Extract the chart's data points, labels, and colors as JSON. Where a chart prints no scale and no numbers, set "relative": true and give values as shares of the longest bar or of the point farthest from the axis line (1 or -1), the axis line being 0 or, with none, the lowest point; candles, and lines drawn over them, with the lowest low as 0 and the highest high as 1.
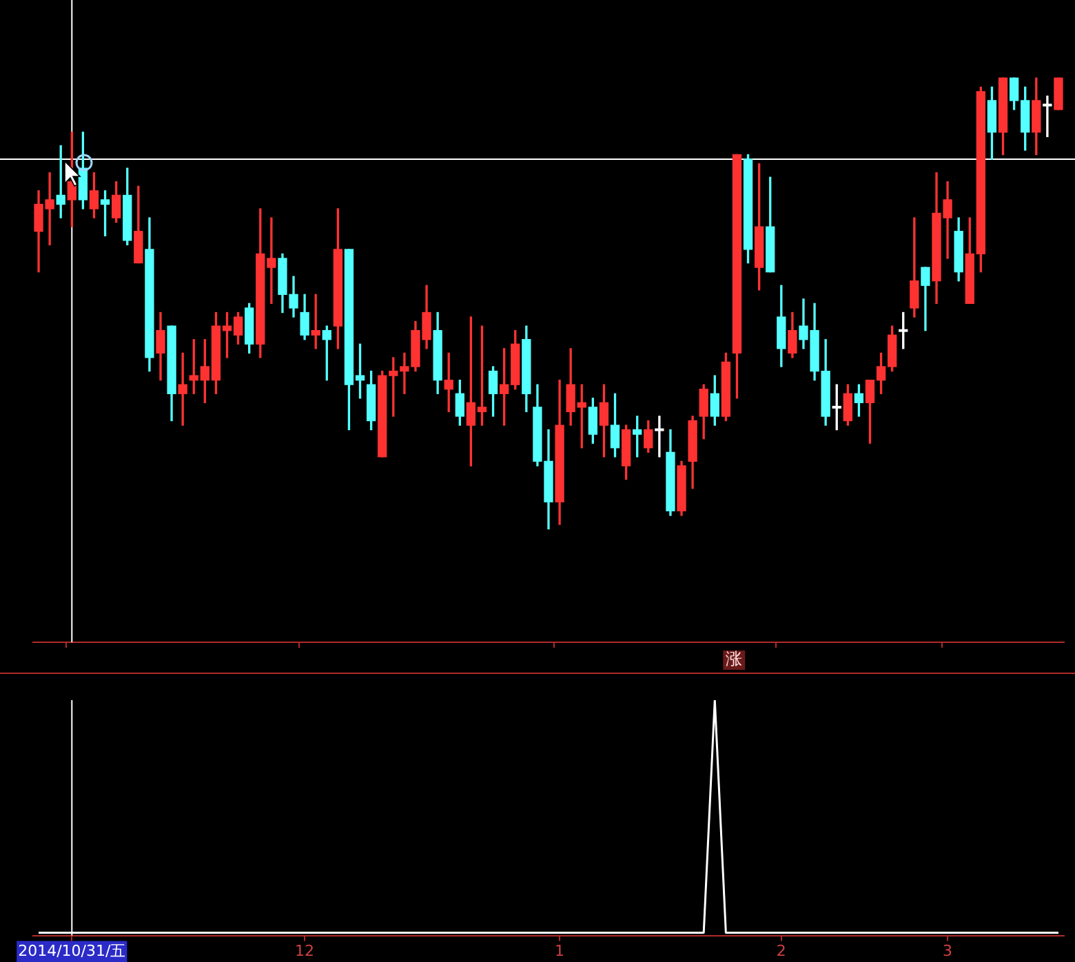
{
  "chart_data": [
    {
      "type": "candlestick",
      "relative": true,
      "tick_labels": false,
      "categories": [
        null,
        null,
        null,
        "2014/10/31/五",
        null,
        null,
        null,
        null,
        null,
        null,
        null,
        null,
        null,
        null,
        null,
        null,
        null,
        null,
        null,
        null,
        null,
        null,
        null,
        null,
        "12",
        null,
        null,
        null,
        null,
        null,
        null,
        null,
        null,
        null,
        null,
        null,
        null,
        null,
        null,
        null,
        null,
        null,
        null,
        null,
        null,
        null,
        null,
        "1",
        null,
        null,
        null,
        null,
        null,
        null,
        null,
        null,
        null,
        null,
        null,
        null,
        null,
        null,
        null,
        null,
        null,
        null,
        null,
        "2",
        null,
        null,
        null,
        null,
        null,
        null,
        null,
        null,
        null,
        null,
        null,
        null,
        null,
        null,
        "3",
        null,
        null,
        null,
        null,
        null,
        null,
        null,
        null,
        null,
        null
      ],
      "ohlc": [
        [
          0.66,
          0.75,
          0.57,
          0.72
        ],
        [
          0.71,
          0.79,
          0.63,
          0.73
        ],
        [
          0.74,
          0.85,
          0.69,
          0.72
        ],
        [
          0.73,
          0.88,
          0.67,
          0.77
        ],
        [
          0.8,
          0.88,
          0.71,
          0.73
        ],
        [
          0.71,
          0.79,
          0.69,
          0.75
        ],
        [
          0.73,
          0.75,
          0.65,
          0.72
        ],
        [
          0.69,
          0.77,
          0.68,
          0.74
        ],
        [
          0.74,
          0.8,
          0.63,
          0.64
        ],
        [
          0.59,
          0.76,
          0.59,
          0.66
        ],
        [
          0.62,
          0.69,
          0.35,
          0.38
        ],
        [
          0.39,
          0.48,
          0.33,
          0.44
        ],
        [
          0.45,
          0.45,
          0.24,
          0.3
        ],
        [
          0.3,
          0.39,
          0.23,
          0.32
        ],
        [
          0.33,
          0.42,
          0.3,
          0.34
        ],
        [
          0.33,
          0.42,
          0.28,
          0.36
        ],
        [
          0.33,
          0.48,
          0.3,
          0.45
        ],
        [
          0.44,
          0.48,
          0.38,
          0.45
        ],
        [
          0.43,
          0.48,
          0.41,
          0.47
        ],
        [
          0.49,
          0.5,
          0.39,
          0.41
        ],
        [
          0.41,
          0.71,
          0.38,
          0.61
        ],
        [
          0.58,
          0.69,
          0.5,
          0.6
        ],
        [
          0.6,
          0.61,
          0.48,
          0.52
        ],
        [
          0.52,
          0.56,
          0.47,
          0.49
        ],
        [
          0.48,
          0.52,
          0.42,
          0.43
        ],
        [
          0.43,
          0.52,
          0.4,
          0.44
        ],
        [
          0.44,
          0.45,
          0.33,
          0.42
        ],
        [
          0.45,
          0.71,
          0.4,
          0.62
        ],
        [
          0.62,
          0.62,
          0.22,
          0.32
        ],
        [
          0.34,
          0.41,
          0.29,
          0.33
        ],
        [
          0.32,
          0.35,
          0.22,
          0.24
        ],
        [
          0.16,
          0.35,
          0.16,
          0.34
        ],
        [
          0.34,
          0.38,
          0.25,
          0.35
        ],
        [
          0.35,
          0.39,
          0.3,
          0.36
        ],
        [
          0.36,
          0.46,
          0.35,
          0.44
        ],
        [
          0.42,
          0.54,
          0.4,
          0.48
        ],
        [
          0.44,
          0.48,
          0.3,
          0.33
        ],
        [
          0.31,
          0.39,
          0.26,
          0.33
        ],
        [
          0.3,
          0.33,
          0.23,
          0.25
        ],
        [
          0.23,
          0.47,
          0.14,
          0.28
        ],
        [
          0.26,
          0.45,
          0.23,
          0.27
        ],
        [
          0.35,
          0.36,
          0.25,
          0.3
        ],
        [
          0.3,
          0.4,
          0.23,
          0.32
        ],
        [
          0.32,
          0.44,
          0.31,
          0.41
        ],
        [
          0.42,
          0.45,
          0.26,
          0.3
        ],
        [
          0.27,
          0.32,
          0.14,
          0.15
        ],
        [
          0.15,
          0.22,
          0,
          0.06
        ],
        [
          0.06,
          0.33,
          0.01,
          0.23
        ],
        [
          0.26,
          0.4,
          0.23,
          0.32
        ],
        [
          0.27,
          0.32,
          0.18,
          0.28
        ],
        [
          0.27,
          0.29,
          0.19,
          0.21
        ],
        [
          0.23,
          0.32,
          0.16,
          0.28
        ],
        [
          0.23,
          0.3,
          0.16,
          0.18
        ],
        [
          0.14,
          0.23,
          0.11,
          0.22
        ],
        [
          0.22,
          0.25,
          0.16,
          0.21
        ],
        [
          0.18,
          0.24,
          0.17,
          0.22
        ],
        [
          0.22,
          0.25,
          0.16,
          0.22
        ],
        [
          0.17,
          0.22,
          0.03,
          0.04
        ],
        [
          0.04,
          0.15,
          0.03,
          0.14
        ],
        [
          0.15,
          0.25,
          0.09,
          0.24
        ],
        [
          0.25,
          0.32,
          0.2,
          0.31
        ],
        [
          0.3,
          0.34,
          0.23,
          0.25
        ],
        [
          0.25,
          0.39,
          0.24,
          0.37
        ],
        [
          0.39,
          0.83,
          0.29,
          0.83
        ],
        [
          0.82,
          0.83,
          0.59,
          0.62
        ],
        [
          0.58,
          0.81,
          0.53,
          0.67
        ],
        [
          0.67,
          0.78,
          0.57,
          0.57
        ],
        [
          0.47,
          0.54,
          0.36,
          0.4
        ],
        [
          0.39,
          0.48,
          0.38,
          0.44
        ],
        [
          0.45,
          0.51,
          0.4,
          0.42
        ],
        [
          0.44,
          0.5,
          0.33,
          0.35
        ],
        [
          0.35,
          0.42,
          0.23,
          0.25
        ],
        [
          0.27,
          0.32,
          0.22,
          0.27
        ],
        [
          0.24,
          0.32,
          0.23,
          0.3
        ],
        [
          0.3,
          0.32,
          0.25,
          0.28
        ],
        [
          0.28,
          0.33,
          0.19,
          0.33
        ],
        [
          0.33,
          0.39,
          0.3,
          0.36
        ],
        [
          0.36,
          0.45,
          0.35,
          0.43
        ],
        [
          0.44,
          0.48,
          0.4,
          0.44
        ],
        [
          0.49,
          0.69,
          0.47,
          0.55
        ],
        [
          0.58,
          0.58,
          0.44,
          0.54
        ],
        [
          0.55,
          0.79,
          0.5,
          0.7
        ],
        [
          0.69,
          0.77,
          0.6,
          0.73
        ],
        [
          0.66,
          0.69,
          0.55,
          0.57
        ],
        [
          0.5,
          0.69,
          0.5,
          0.61
        ],
        [
          0.61,
          0.98,
          0.57,
          0.97
        ],
        [
          0.95,
          0.98,
          0.82,
          0.88
        ],
        [
          0.88,
          1,
          0.83,
          1
        ],
        [
          1,
          1,
          0.93,
          0.95
        ],
        [
          0.95,
          0.98,
          0.84,
          0.88
        ],
        [
          0.88,
          1,
          0.83,
          0.95
        ],
        [
          0.94,
          0.96,
          0.87,
          0.94
        ],
        [
          0.93,
          1,
          0.93,
          1
        ]
      ],
      "colors": [
        "#ff3232",
        "#ff3232",
        "#54ffff",
        "#ff3232",
        "#54ffff",
        "#ff3232",
        "#54ffff",
        "#ff3232",
        "#54ffff",
        "#ff3232",
        "#54ffff",
        "#ff3232",
        "#54ffff",
        "#ff3232",
        "#ff3232",
        "#ff3232",
        "#ff3232",
        "#ff3232",
        "#ff3232",
        "#54ffff",
        "#ff3232",
        "#ff3232",
        "#54ffff",
        "#54ffff",
        "#54ffff",
        "#ff3232",
        "#54ffff",
        "#ff3232",
        "#54ffff",
        "#54ffff",
        "#54ffff",
        "#ff3232",
        "#ff3232",
        "#ff3232",
        "#ff3232",
        "#ff3232",
        "#54ffff",
        "#ff3232",
        "#54ffff",
        "#ff3232",
        "#ff3232",
        "#54ffff",
        "#ff3232",
        "#ff3232",
        "#54ffff",
        "#54ffff",
        "#54ffff",
        "#ff3232",
        "#ff3232",
        "#ff3232",
        "#54ffff",
        "#ff3232",
        "#54ffff",
        "#ff3232",
        "#54ffff",
        "#ff3232",
        "#ffffff",
        "#54ffff",
        "#ff3232",
        "#ff3232",
        "#ff3232",
        "#54ffff",
        "#ff3232",
        "#ff3232",
        "#54ffff",
        "#ff3232",
        "#54ffff",
        "#54ffff",
        "#ff3232",
        "#54ffff",
        "#54ffff",
        "#54ffff",
        "#ffffff",
        "#ff3232",
        "#54ffff",
        "#ff3232",
        "#ff3232",
        "#ff3232",
        "#ffffff",
        "#ff3232",
        "#54ffff",
        "#ff3232",
        "#ff3232",
        "#54ffff",
        "#ff3232",
        "#ff3232",
        "#54ffff",
        "#ff3232",
        "#54ffff",
        "#54ffff",
        "#ff3232",
        "#ffffff",
        "#ff3232"
      ],
      "ref_lines": [
        {
          "axis": "x",
          "value": "2014/10/31/五",
          "color": "#ffffff"
        },
        {
          "axis": "y",
          "value": 0.82,
          "color": "#ffffff"
        }
      ]
    },
    {
      "type": "line",
      "relative": true,
      "tick_labels": "x",
      "categories": [
        null,
        null,
        null,
        "2014/10/31/五",
        null,
        null,
        null,
        null,
        null,
        null,
        null,
        null,
        null,
        null,
        null,
        null,
        null,
        null,
        null,
        null,
        null,
        null,
        null,
        null,
        "12",
        null,
        null,
        null,
        null,
        null,
        null,
        null,
        null,
        null,
        null,
        null,
        null,
        null,
        null,
        null,
        null,
        null,
        null,
        null,
        null,
        null,
        null,
        "1",
        null,
        null,
        null,
        null,
        null,
        null,
        null,
        null,
        null,
        null,
        null,
        null,
        null,
        null,
        null,
        null,
        null,
        null,
        null,
        "2",
        null,
        null,
        null,
        null,
        null,
        null,
        null,
        null,
        null,
        null,
        null,
        null,
        null,
        null,
        "3",
        null,
        null,
        null,
        null,
        null,
        null,
        null,
        null,
        null,
        null
      ],
      "series": [
        {
          "color": "#ffffff",
          "values": [
            0,
            0,
            0,
            0,
            0,
            0,
            0,
            0,
            0,
            0,
            0,
            0,
            0,
            0,
            0,
            0,
            0,
            0,
            0,
            0,
            0,
            0,
            0,
            0,
            0,
            0,
            0,
            0,
            0,
            0,
            0,
            0,
            0,
            0,
            0,
            0,
            0,
            0,
            0,
            0,
            0,
            0,
            0,
            0,
            0,
            0,
            0,
            0,
            0,
            0,
            0,
            0,
            0,
            0,
            0,
            0,
            0,
            0,
            0,
            0,
            0,
            1,
            0,
            0,
            0,
            0,
            0,
            0,
            0,
            0,
            0,
            0,
            0,
            0,
            0,
            0,
            0,
            0,
            0,
            0,
            0,
            0,
            0,
            0,
            0,
            0,
            0,
            0,
            0,
            0,
            0,
            0,
            0
          ]
        }
      ],
      "annotations": [
        "涨"
      ],
      "ref_lines": [
        {
          "axis": "x",
          "value": "2014/10/31/五",
          "color": "#ffffff"
        }
      ]
    }
  ]
}
